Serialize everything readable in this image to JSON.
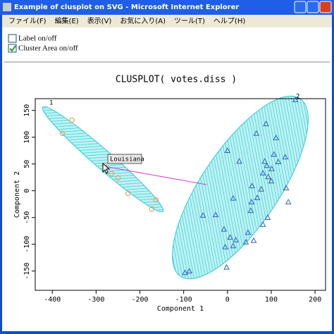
{
  "window": {
    "title": "Example of clusplot on SVG - Microsoft Internet Explorer",
    "menu": [
      "ファイル(F)",
      "編集(E)",
      "表示(V)",
      "お気に入り(A)",
      "ツール(T)",
      "ヘルプ(H)"
    ]
  },
  "controls": [
    {
      "label": "Label on/off",
      "checked": false
    },
    {
      "label": "Cluster Area on/off",
      "checked": true
    }
  ],
  "chart_data": {
    "type": "scatter",
    "title": "CLUSPLOT( votes.diss )",
    "x_label": "Component 1",
    "y_label": "Component 2",
    "xlim": [
      -439,
      224
    ],
    "ylim": [
      -186,
      172
    ],
    "xticks": [
      -400,
      -300,
      -200,
      -100,
      0,
      100,
      200
    ],
    "yticks": [
      -150,
      -100,
      -50,
      0,
      50,
      100,
      150
    ],
    "cluster_labels": [
      "1",
      "2"
    ],
    "tooltip": "Louisiana",
    "series": [
      {
        "marker": "circle",
        "color": "#e8a060",
        "x": [
          -355,
          -377,
          -281,
          -265,
          -250,
          -227,
          -163,
          -173
        ],
        "y": [
          132,
          107,
          47,
          32,
          24,
          -5,
          -17,
          -34
        ]
      },
      {
        "marker": "triangle",
        "color": "#3060c0",
        "x": [
          155,
          88,
          66,
          111,
          106,
          132,
          85,
          90,
          101,
          116,
          0,
          27,
          81,
          93,
          100,
          56,
          77,
          134,
          68,
          55,
          139,
          13,
          53,
          92,
          -27,
          -56,
          81,
          -8,
          47,
          6,
          19,
          60,
          13,
          42,
          -87,
          -97,
          -2,
          -5
        ],
        "y": [
          170,
          125,
          107,
          99,
          68,
          63,
          55,
          47,
          41,
          54,
          75,
          55,
          33,
          26,
          18,
          9,
          3,
          5,
          -13,
          -21,
          -21,
          -14,
          -37,
          -50,
          -45,
          -46,
          -63,
          -72,
          -78,
          -87,
          -92,
          -93,
          -103,
          -96,
          -150,
          -153,
          -143,
          -105
        ]
      }
    ]
  }
}
